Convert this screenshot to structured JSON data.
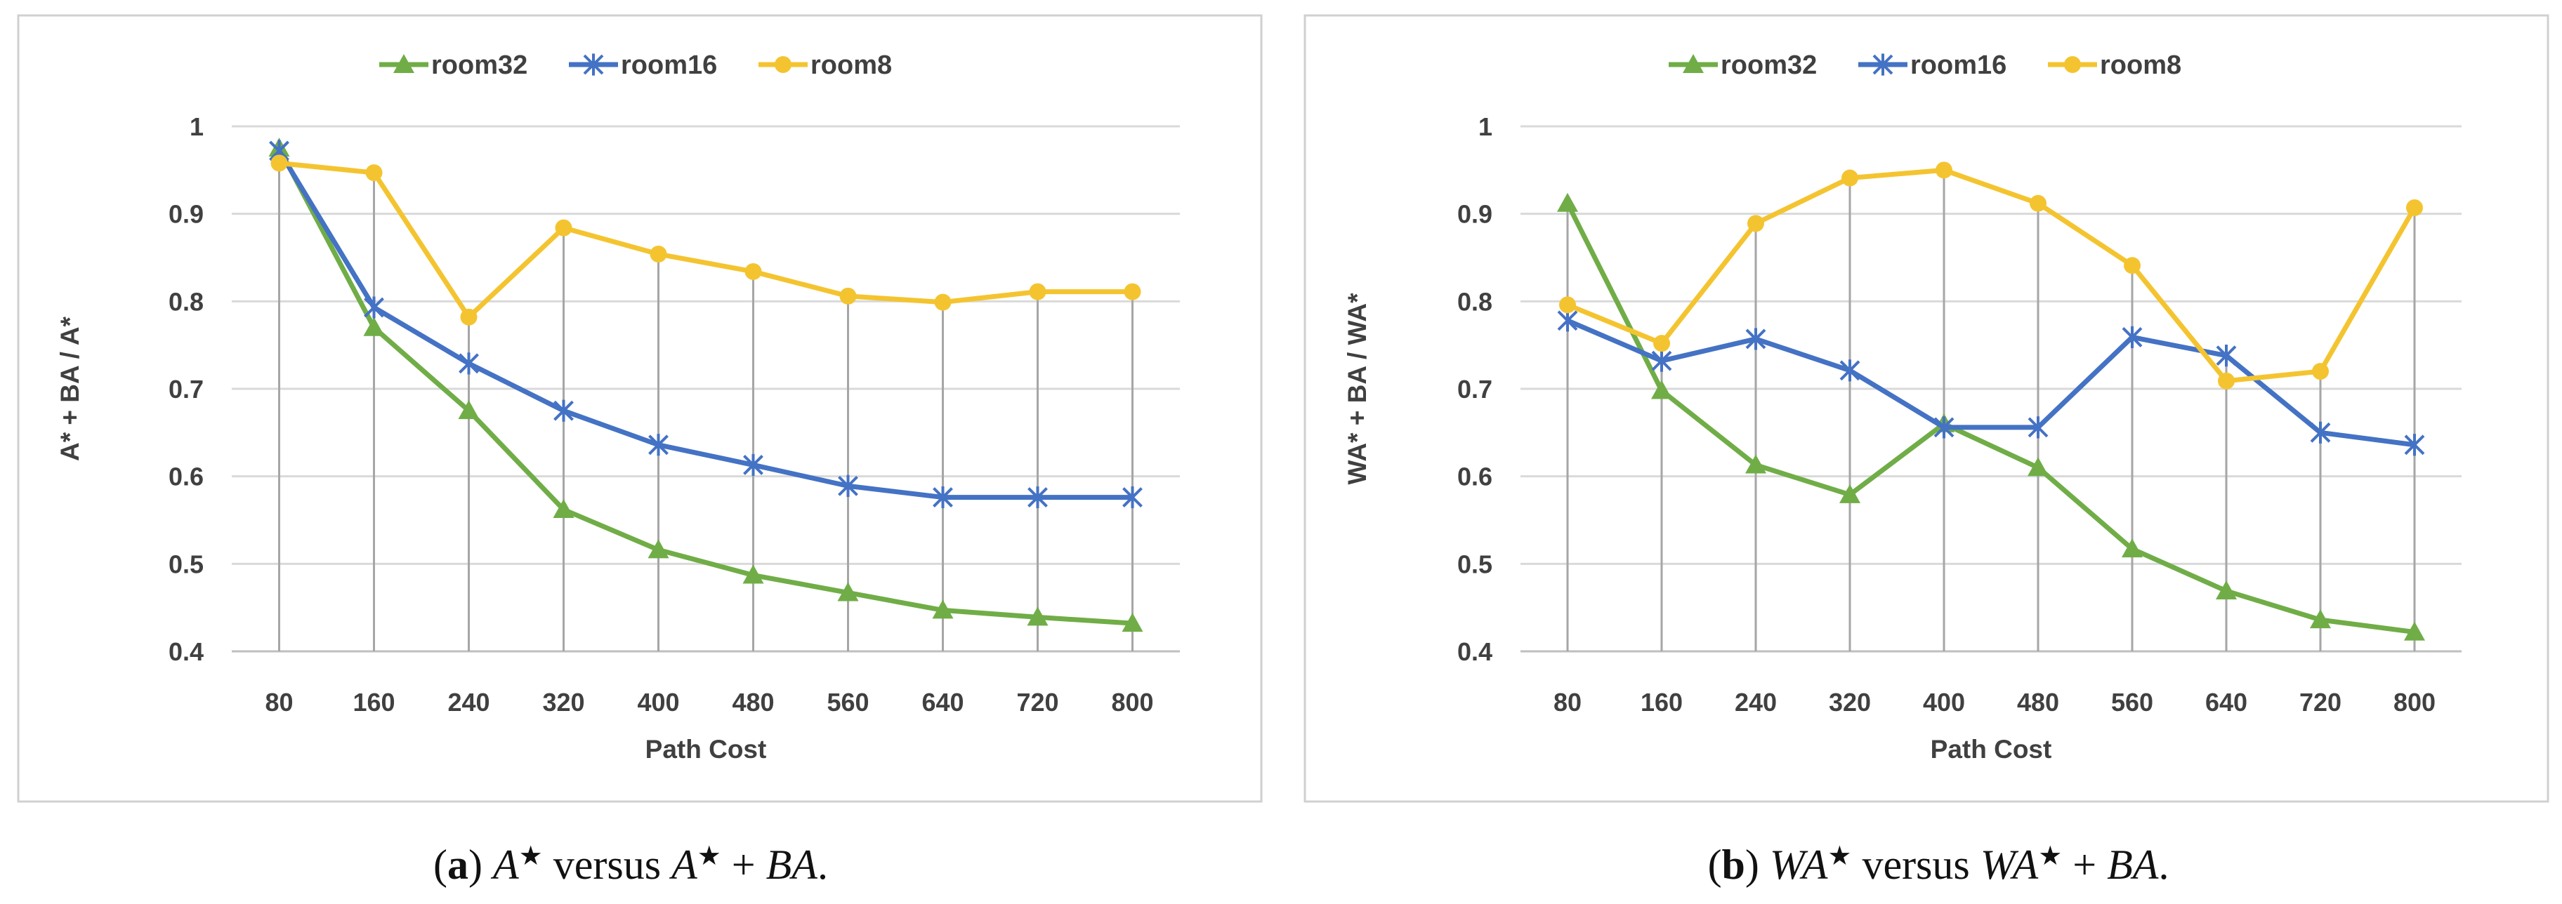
{
  "chart_data": [
    {
      "type": "line",
      "panel": "a",
      "title": "",
      "xlabel": "Path Cost",
      "ylabel": "A* + BA / A*",
      "categories": [
        "80",
        "160",
        "240",
        "320",
        "400",
        "480",
        "560",
        "640",
        "720",
        "800"
      ],
      "ylim": [
        0.4,
        1.0
      ],
      "yticks": [
        "0.4",
        "0.5",
        "0.6",
        "0.7",
        "0.8",
        "0.9",
        "1"
      ],
      "grid": true,
      "legend_position": "top",
      "series": [
        {
          "name": "room32",
          "color": "#70ad47",
          "marker": "triangle",
          "values": [
            0.975,
            0.77,
            0.675,
            0.562,
            0.516,
            0.487,
            0.467,
            0.447,
            0.439,
            0.432
          ]
        },
        {
          "name": "room16",
          "color": "#4472c4",
          "marker": "asterisk",
          "values": [
            0.972,
            0.793,
            0.729,
            0.675,
            0.636,
            0.613,
            0.589,
            0.576,
            0.576,
            0.576
          ]
        },
        {
          "name": "room8",
          "color": "#f4c430",
          "marker": "circle",
          "values": [
            0.958,
            0.947,
            0.782,
            0.884,
            0.854,
            0.834,
            0.806,
            0.799,
            0.811,
            0.811
          ]
        }
      ],
      "caption": {
        "label": "a",
        "open": "(",
        "close": ")",
        "parts": [
          " ",
          "A",
          "★",
          " versus ",
          "A",
          "★",
          " + ",
          "BA",
          "."
        ]
      }
    },
    {
      "type": "line",
      "panel": "b",
      "title": "",
      "xlabel": "Path Cost",
      "ylabel": "WA* + BA / WA*",
      "categories": [
        "80",
        "160",
        "240",
        "320",
        "400",
        "480",
        "560",
        "640",
        "720",
        "800"
      ],
      "ylim": [
        0.4,
        1.0
      ],
      "yticks": [
        "0.4",
        "0.5",
        "0.6",
        "0.7",
        "0.8",
        "0.9",
        "1"
      ],
      "grid": true,
      "legend_position": "top",
      "series": [
        {
          "name": "room32",
          "color": "#70ad47",
          "marker": "triangle",
          "values": [
            0.912,
            0.698,
            0.613,
            0.579,
            0.66,
            0.61,
            0.517,
            0.469,
            0.436,
            0.422
          ]
        },
        {
          "name": "room16",
          "color": "#4472c4",
          "marker": "asterisk",
          "values": [
            0.778,
            0.732,
            0.757,
            0.721,
            0.656,
            0.656,
            0.759,
            0.738,
            0.65,
            0.636
          ]
        },
        {
          "name": "room8",
          "color": "#f4c430",
          "marker": "circle",
          "values": [
            0.796,
            0.752,
            0.889,
            0.941,
            0.95,
            0.912,
            0.841,
            0.709,
            0.72,
            0.907
          ]
        }
      ],
      "caption": {
        "label": "b",
        "open": "(",
        "close": ")",
        "parts": [
          " ",
          "WA",
          "★",
          " versus ",
          "WA",
          "★",
          " + ",
          "BA",
          "."
        ]
      }
    }
  ]
}
